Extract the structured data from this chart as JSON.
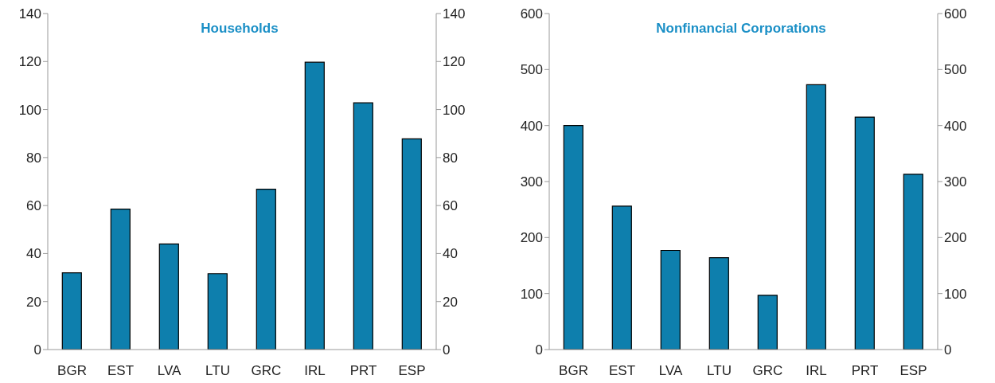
{
  "chart_data": [
    {
      "type": "bar",
      "title": "Households",
      "categories": [
        "BGR",
        "EST",
        "LVA",
        "LTU",
        "GRC",
        "IRL",
        "PRT",
        "ESP"
      ],
      "values": [
        32,
        58.5,
        44,
        31.6,
        66.8,
        119.7,
        102.8,
        87.8
      ],
      "color": "#0e7fad",
      "ylim": [
        0,
        140
      ],
      "yticks": [
        0,
        20,
        40,
        60,
        80,
        100,
        120,
        140
      ],
      "y2lim": [
        0,
        140
      ],
      "y2ticks": [
        0,
        20,
        40,
        60,
        80,
        100,
        120,
        140
      ],
      "grid": false,
      "legend": false
    },
    {
      "type": "bar",
      "title": "Nonfinancial Corporations",
      "categories": [
        "BGR",
        "EST",
        "LVA",
        "LTU",
        "GRC",
        "IRL",
        "PRT",
        "ESP"
      ],
      "values": [
        400,
        256,
        177,
        164,
        97,
        473,
        415,
        313
      ],
      "color": "#0e7fad",
      "ylim": [
        0,
        600
      ],
      "yticks": [
        0,
        100,
        200,
        300,
        400,
        500,
        600
      ],
      "y2lim": [
        0,
        600
      ],
      "y2ticks": [
        0,
        100,
        200,
        300,
        400,
        500,
        600
      ],
      "grid": false,
      "legend": false
    }
  ]
}
